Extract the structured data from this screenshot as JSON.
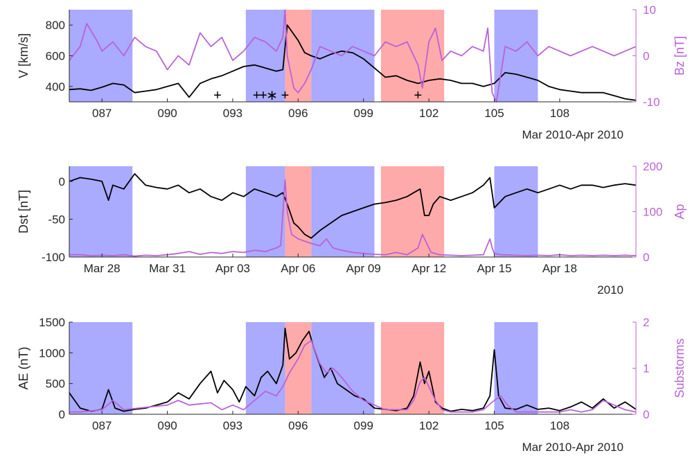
{
  "colors": {
    "blue_band": "#aaaaff",
    "red_band": "#ffaaaa",
    "black_line": "#000000",
    "purple_line": "#b962d8",
    "axis": "#262626"
  },
  "chart_data": [
    {
      "type": "line",
      "xlim": [
        85.5,
        111.5
      ],
      "x_ticks": [
        87,
        90,
        93,
        96,
        99,
        102,
        105,
        108
      ],
      "x_tick_labels": [
        "087",
        "090",
        "093",
        "096",
        "099",
        "102",
        "105",
        "108"
      ],
      "date_label": "Mar 2010-Apr 2010",
      "ylabel_left": "V [km/s]",
      "ylim_left": [
        300,
        900
      ],
      "yticks_left": [
        400,
        600,
        800
      ],
      "ylabel_right": "Bz [nT]",
      "ylim_right": [
        -10,
        10
      ],
      "yticks_right": [
        -10,
        0,
        10
      ],
      "blue_bands": [
        [
          85.5,
          88.4
        ],
        [
          93.6,
          95.4
        ],
        [
          96.6,
          99.5
        ],
        [
          105.0,
          107.0
        ]
      ],
      "red_bands": [
        [
          95.4,
          96.6
        ],
        [
          99.8,
          102.7
        ]
      ],
      "markers": [
        {
          "x": 92.3,
          "y": 340,
          "symbol": "+"
        },
        {
          "x": 94.1,
          "y": 340,
          "symbol": "+"
        },
        {
          "x": 94.4,
          "y": 340,
          "symbol": "+"
        },
        {
          "x": 94.8,
          "y": 340,
          "symbol": "∗"
        },
        {
          "x": 95.4,
          "y": 340,
          "symbol": "+"
        },
        {
          "x": 101.5,
          "y": 340,
          "symbol": "+"
        }
      ],
      "series": [
        {
          "axis": "left",
          "color": "#000000",
          "x": [
            85.5,
            86.0,
            86.5,
            87.0,
            87.5,
            88.0,
            88.5,
            89.0,
            89.5,
            90.0,
            90.5,
            91.0,
            91.5,
            92.0,
            92.5,
            93.0,
            93.5,
            94.0,
            94.5,
            95.0,
            95.3,
            95.5,
            95.7,
            96.0,
            96.3,
            96.6,
            97.0,
            97.5,
            98.0,
            98.5,
            99.0,
            99.5,
            100.0,
            100.5,
            101.0,
            101.5,
            102.0,
            102.5,
            103.0,
            103.5,
            104.0,
            104.5,
            105.0,
            105.5,
            106.0,
            106.5,
            107.0,
            107.5,
            108.0,
            108.5,
            109.0,
            109.5,
            110.0,
            110.5,
            111.0,
            111.5
          ],
          "values": [
            380,
            385,
            375,
            395,
            420,
            410,
            360,
            370,
            380,
            400,
            420,
            330,
            420,
            450,
            470,
            500,
            530,
            540,
            520,
            500,
            510,
            800,
            760,
            700,
            620,
            600,
            580,
            610,
            630,
            620,
            580,
            520,
            460,
            470,
            440,
            420,
            440,
            450,
            440,
            420,
            420,
            400,
            420,
            490,
            480,
            460,
            440,
            400,
            380,
            370,
            360,
            360,
            360,
            340,
            320,
            310
          ]
        },
        {
          "axis": "right",
          "color": "#b962d8",
          "x": [
            85.5,
            86.0,
            86.3,
            86.8,
            87.0,
            87.5,
            88.0,
            88.5,
            89.0,
            89.5,
            90.0,
            90.5,
            91.0,
            91.5,
            92.0,
            92.5,
            93.0,
            93.5,
            94.0,
            94.5,
            95.0,
            95.3,
            95.4,
            95.5,
            95.8,
            96.0,
            96.3,
            96.6,
            97.0,
            97.5,
            98.0,
            98.5,
            99.0,
            99.5,
            100.0,
            100.5,
            101.0,
            101.5,
            101.7,
            102.0,
            102.3,
            102.6,
            103.0,
            103.5,
            104.0,
            104.5,
            104.7,
            104.9,
            105.1,
            105.5,
            106.0,
            106.5,
            107.0,
            107.5,
            108.0,
            108.5,
            109.0,
            109.5,
            110.0,
            110.5,
            111.0,
            111.5
          ],
          "values": [
            -1,
            2,
            7,
            3,
            1,
            3,
            0,
            4,
            2,
            1,
            -3,
            0,
            -2,
            5,
            2,
            4,
            -1,
            1,
            4,
            3,
            1,
            4,
            10,
            0,
            -7,
            -8,
            -6,
            -3,
            2,
            1,
            0,
            2,
            1,
            0,
            3,
            2,
            3,
            -2,
            -7,
            3,
            6,
            -1,
            1,
            0,
            2,
            1,
            6,
            -8,
            -10,
            2,
            1,
            3,
            0,
            2,
            1,
            0,
            1,
            2,
            1,
            0,
            1,
            2
          ]
        }
      ]
    },
    {
      "type": "line",
      "xlim": [
        85.5,
        111.5
      ],
      "x_ticks": [
        87,
        90,
        93,
        96,
        99,
        102,
        105,
        108
      ],
      "x_tick_labels": [
        "Mar 28",
        "Mar 31",
        "Apr 03",
        "Apr 06",
        "Apr 09",
        "Apr 12",
        "Apr 15",
        "Apr 18"
      ],
      "date_label": "2010",
      "ylabel_left": "Dst [nT]",
      "ylim_left": [
        -100,
        20
      ],
      "yticks_left": [
        -100,
        -50,
        0
      ],
      "ylabel_right": "Ap",
      "ylim_right": [
        0,
        200
      ],
      "yticks_right": [
        0,
        100,
        200
      ],
      "blue_bands": [
        [
          85.5,
          88.4
        ],
        [
          93.6,
          95.4
        ],
        [
          96.6,
          99.5
        ],
        [
          105.0,
          107.0
        ]
      ],
      "red_bands": [
        [
          95.4,
          96.6
        ],
        [
          99.8,
          102.7
        ]
      ],
      "series": [
        {
          "axis": "left",
          "color": "#000000",
          "x": [
            85.5,
            86.0,
            86.5,
            87.0,
            87.3,
            87.5,
            88.0,
            88.5,
            89.0,
            89.5,
            90.0,
            90.5,
            91.0,
            91.5,
            92.0,
            92.5,
            93.0,
            93.5,
            94.0,
            94.5,
            95.0,
            95.3,
            95.5,
            95.8,
            96.0,
            96.3,
            96.6,
            97.0,
            97.5,
            98.0,
            98.5,
            99.0,
            99.5,
            100.0,
            100.5,
            101.0,
            101.3,
            101.6,
            101.8,
            102.0,
            102.2,
            102.5,
            103.0,
            103.5,
            104.0,
            104.5,
            104.8,
            105.0,
            105.5,
            106.0,
            106.5,
            107.0,
            107.5,
            108.0,
            108.5,
            109.0,
            109.5,
            110.0,
            110.5,
            111.0,
            111.5
          ],
          "values": [
            0,
            5,
            3,
            0,
            -25,
            -5,
            -10,
            10,
            -5,
            -8,
            -10,
            -5,
            -15,
            -10,
            -20,
            -25,
            -15,
            -20,
            -10,
            -15,
            -20,
            -15,
            -30,
            -55,
            -60,
            -70,
            -75,
            -65,
            -55,
            -45,
            -40,
            -35,
            -30,
            -28,
            -25,
            -20,
            -15,
            -10,
            -45,
            -45,
            -30,
            -20,
            -25,
            -20,
            -15,
            -5,
            5,
            -35,
            -20,
            -15,
            -10,
            -15,
            -10,
            -5,
            -10,
            -5,
            -5,
            -8,
            -5,
            -3,
            -5
          ]
        },
        {
          "axis": "right",
          "color": "#b962d8",
          "x": [
            85.5,
            86.0,
            86.5,
            87.0,
            87.5,
            88.0,
            88.5,
            89.0,
            89.5,
            90.0,
            90.5,
            91.0,
            91.5,
            92.0,
            92.5,
            93.0,
            93.5,
            94.0,
            94.5,
            95.0,
            95.2,
            95.4,
            95.5,
            95.7,
            96.0,
            96.3,
            96.6,
            97.0,
            97.3,
            97.6,
            98.0,
            98.5,
            99.0,
            99.5,
            100.0,
            100.5,
            101.0,
            101.5,
            101.7,
            101.9,
            102.1,
            102.5,
            103.0,
            103.5,
            104.0,
            104.5,
            104.8,
            104.9,
            105.0,
            105.3,
            106.0,
            106.5,
            107.0,
            107.5,
            108.0,
            108.5,
            109.0,
            109.5,
            110.0,
            110.5,
            111.0,
            111.5
          ],
          "values": [
            5,
            5,
            3,
            4,
            3,
            5,
            2,
            4,
            3,
            5,
            8,
            12,
            6,
            10,
            8,
            12,
            10,
            15,
            12,
            20,
            25,
            170,
            100,
            50,
            40,
            35,
            30,
            25,
            40,
            20,
            15,
            10,
            8,
            6,
            5,
            10,
            5,
            20,
            50,
            30,
            10,
            5,
            4,
            3,
            4,
            5,
            40,
            20,
            8,
            5,
            4,
            3,
            4,
            3,
            5,
            3,
            4,
            3,
            4,
            3,
            4,
            3
          ]
        }
      ]
    },
    {
      "type": "line",
      "xlim": [
        85.5,
        111.5
      ],
      "x_ticks": [
        87,
        90,
        93,
        96,
        99,
        102,
        105,
        108
      ],
      "x_tick_labels": [
        "087",
        "090",
        "093",
        "096",
        "099",
        "102",
        "105",
        "108"
      ],
      "date_label": "Mar 2010-Apr 2010",
      "ylabel_left": "AE (nT)",
      "ylim_left": [
        0,
        1500
      ],
      "yticks_left": [
        0,
        500,
        1000,
        1500
      ],
      "ylabel_right": "Substorms",
      "ylim_right": [
        0,
        2
      ],
      "yticks_right": [
        0,
        1,
        2
      ],
      "blue_bands": [
        [
          85.5,
          88.4
        ],
        [
          93.6,
          95.4
        ],
        [
          96.6,
          99.5
        ],
        [
          105.0,
          107.0
        ]
      ],
      "red_bands": [
        [
          95.4,
          96.6
        ],
        [
          99.8,
          102.7
        ]
      ],
      "series": [
        {
          "axis": "left",
          "color": "#000000",
          "x": [
            85.5,
            86.0,
            86.5,
            87.0,
            87.3,
            87.6,
            88.0,
            88.5,
            89.0,
            89.5,
            90.0,
            90.5,
            91.0,
            91.5,
            92.0,
            92.3,
            92.6,
            93.0,
            93.3,
            93.6,
            94.0,
            94.3,
            94.6,
            95.0,
            95.3,
            95.4,
            95.6,
            95.9,
            96.2,
            96.5,
            96.7,
            96.9,
            97.2,
            97.5,
            97.8,
            98.2,
            98.6,
            99.0,
            99.5,
            100.0,
            100.5,
            101.0,
            101.3,
            101.6,
            101.8,
            102.0,
            102.3,
            102.6,
            103.0,
            103.5,
            104.0,
            104.5,
            104.8,
            105.0,
            105.2,
            105.5,
            106.0,
            106.5,
            107.0,
            107.5,
            108.0,
            108.5,
            109.0,
            109.5,
            110.0,
            110.5,
            111.0,
            111.5
          ],
          "values": [
            350,
            100,
            50,
            80,
            400,
            100,
            50,
            80,
            100,
            150,
            200,
            350,
            250,
            500,
            700,
            350,
            550,
            400,
            200,
            450,
            300,
            600,
            700,
            500,
            800,
            1400,
            900,
            1000,
            1200,
            1350,
            1100,
            900,
            600,
            750,
            500,
            400,
            300,
            250,
            100,
            80,
            60,
            100,
            300,
            850,
            500,
            700,
            200,
            100,
            50,
            80,
            60,
            100,
            300,
            1050,
            300,
            100,
            80,
            150,
            80,
            100,
            60,
            120,
            200,
            100,
            250,
            100,
            200,
            80
          ]
        },
        {
          "axis": "right",
          "color": "#b962d8",
          "x": [
            85.5,
            86.0,
            87.0,
            87.5,
            88.0,
            89.0,
            90.0,
            90.5,
            91.0,
            92.0,
            92.5,
            93.0,
            93.5,
            94.0,
            94.5,
            95.0,
            95.3,
            95.6,
            96.0,
            96.3,
            96.6,
            97.0,
            97.3,
            97.6,
            98.0,
            98.5,
            99.0,
            99.5,
            100.0,
            100.5,
            101.0,
            101.3,
            101.6,
            101.8,
            102.0,
            102.3,
            102.6,
            103.0,
            104.0,
            104.5,
            105.0,
            105.3,
            105.6,
            106.0,
            107.0,
            108.0,
            108.5,
            109.0,
            109.5,
            110.0,
            110.5,
            111.0,
            111.5
          ],
          "values": [
            0.05,
            0.05,
            0.1,
            0.3,
            0.1,
            0.15,
            0.2,
            0.3,
            0.2,
            0.25,
            0.1,
            0.2,
            0.1,
            0.3,
            0.5,
            0.4,
            0.6,
            0.9,
            1.2,
            1.5,
            1.6,
            1.1,
            0.9,
            1.0,
            0.8,
            0.5,
            0.3,
            0.2,
            0.1,
            0.1,
            0.1,
            0.3,
            0.7,
            0.8,
            0.6,
            0.3,
            0.1,
            0.05,
            0.05,
            0.1,
            0.3,
            0.4,
            0.2,
            0.05,
            0.05,
            0.05,
            0.1,
            0.05,
            0.1,
            0.3,
            0.2,
            0.1,
            0.05
          ]
        }
      ]
    }
  ]
}
